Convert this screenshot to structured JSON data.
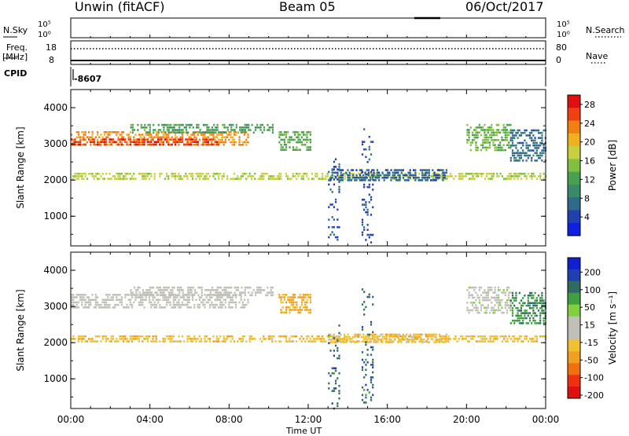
{
  "header": {
    "station": "Unwin (fitACF)",
    "beam": "Beam 05",
    "date": "06/Oct/2017"
  },
  "top_panels": {
    "nsky_label": "N.Sky",
    "nsearch_label": "N.Search",
    "nsky_ticks": [
      "10^5",
      "10^0"
    ],
    "nsearch_ticks": [
      "10^5",
      "10^0"
    ],
    "freq_label": "Freq.",
    "freq_unit": "[MHz]",
    "freq_ticks": [
      "18",
      "8"
    ],
    "nave_label": "Nave",
    "nave_ticks": [
      "80",
      "0"
    ],
    "cpid_label": "CPID",
    "cpid_value": "-8607"
  },
  "x_axis": {
    "label": "Time UT",
    "ticks": [
      "00:00",
      "04:00",
      "08:00",
      "12:00",
      "16:00",
      "20:00",
      "00:00"
    ]
  },
  "chart_data": [
    {
      "type": "heatmap",
      "title": "",
      "xlabel": "",
      "ylabel": "Slant Range [km]",
      "xlim": [
        0,
        24
      ],
      "ylim": [
        180,
        4500
      ],
      "yticks": [
        "4000",
        "3000",
        "2000",
        "1000"
      ],
      "ytick_values": [
        4000,
        3000,
        2000,
        1000
      ],
      "colorbar": {
        "label": "Power [dB]",
        "ticks": [
          "28",
          "24",
          "20",
          "16",
          "12",
          "8",
          "4"
        ],
        "tick_values": [
          28,
          24,
          20,
          16,
          12,
          8,
          4
        ],
        "range": [
          0,
          30
        ],
        "colors": [
          "#1020e0",
          "#2040b0",
          "#2f6a8a",
          "#3a8a6a",
          "#4aa050",
          "#80c040",
          "#c8d040",
          "#f0b020",
          "#f08010",
          "#f04010",
          "#e01010"
        ]
      },
      "bands": [
        {
          "t0": 0.0,
          "t1": 9.0,
          "r0": 2950,
          "r1": 3350,
          "v": 22
        },
        {
          "t0": 0.0,
          "t1": 7.5,
          "r0": 3000,
          "r1": 3150,
          "v": 27
        },
        {
          "t0": 3.0,
          "t1": 10.2,
          "r0": 3300,
          "r1": 3550,
          "v": 12
        },
        {
          "t0": 0.0,
          "t1": 24.0,
          "r0": 2030,
          "r1": 2200,
          "v": 17
        },
        {
          "t0": 10.5,
          "t1": 12.1,
          "r0": 2800,
          "r1": 3350,
          "v": 13
        },
        {
          "t0": 13.0,
          "t1": 19.0,
          "r0": 2000,
          "r1": 2300,
          "v": 6
        },
        {
          "t0": 20.0,
          "t1": 22.2,
          "r0": 2800,
          "r1": 3550,
          "v": 14
        },
        {
          "t0": 22.2,
          "t1": 24.0,
          "r0": 2550,
          "r1": 3400,
          "v": 7
        },
        {
          "t0": 13.0,
          "t1": 13.6,
          "r0": 200,
          "r1": 2600,
          "v": 5
        },
        {
          "t0": 14.7,
          "t1": 15.3,
          "r0": 300,
          "r1": 3500,
          "v": 5
        }
      ]
    },
    {
      "type": "heatmap",
      "title": "",
      "xlabel": "Time UT",
      "ylabel": "Slant Range [km]",
      "xlim": [
        0,
        24
      ],
      "ylim": [
        180,
        4500
      ],
      "yticks": [
        "4000",
        "3000",
        "2000",
        "1000"
      ],
      "ytick_values": [
        4000,
        3000,
        2000,
        1000
      ],
      "colorbar": {
        "label": "Velocity [m s^-1]",
        "ticks": [
          "200",
          "100",
          "50",
          "15",
          "-15",
          "-50",
          "-100",
          "-200"
        ],
        "tick_values": [
          200,
          100,
          50,
          15,
          -15,
          -50,
          -100,
          -200
        ],
        "range": [
          -250,
          250
        ],
        "colors": [
          "#e01010",
          "#f03010",
          "#f07010",
          "#f0a020",
          "#f0c030",
          "#c0c0b8",
          "#c0c0b8",
          "#80d040",
          "#40a040",
          "#306a60",
          "#2040b0",
          "#1020d0"
        ]
      },
      "bands": [
        {
          "t0": 0.0,
          "t1": 9.0,
          "r0": 2950,
          "r1": 3350,
          "v": 0
        },
        {
          "t0": 3.0,
          "t1": 10.2,
          "r0": 3300,
          "r1": 3550,
          "v": 5
        },
        {
          "t0": 0.0,
          "t1": 24.0,
          "r0": 2030,
          "r1": 2200,
          "v": -70
        },
        {
          "t0": 10.5,
          "t1": 12.1,
          "r0": 2800,
          "r1": 3350,
          "v": -90
        },
        {
          "t0": 13.0,
          "t1": 19.0,
          "r0": 2000,
          "r1": 2250,
          "v": -60
        },
        {
          "t0": 20.0,
          "t1": 22.2,
          "r0": 2800,
          "r1": 3550,
          "v": 20
        },
        {
          "t0": 22.2,
          "t1": 24.0,
          "r0": 2550,
          "r1": 3400,
          "v": 120
        },
        {
          "t0": 13.0,
          "t1": 13.6,
          "r0": 200,
          "r1": 2500,
          "v": 150
        },
        {
          "t0": 14.7,
          "t1": 15.3,
          "r0": 300,
          "r1": 3500,
          "v": 150
        }
      ]
    }
  ]
}
